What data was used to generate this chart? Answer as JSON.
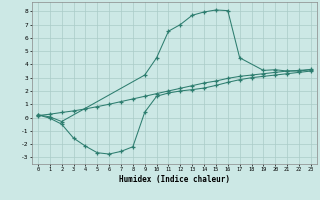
{
  "line1_x": [
    0,
    1,
    2,
    9,
    10,
    11,
    12,
    13,
    14,
    15,
    16,
    17,
    19,
    20,
    21,
    22,
    23
  ],
  "line1_y": [
    0.2,
    0.05,
    -0.3,
    3.2,
    4.5,
    6.5,
    7.0,
    7.7,
    7.95,
    8.1,
    8.05,
    4.5,
    3.55,
    3.6,
    3.5,
    3.5,
    3.6
  ],
  "line2_x": [
    0,
    1,
    2,
    3,
    4,
    5,
    6,
    7,
    8,
    9,
    10,
    11,
    12,
    13,
    14,
    15,
    16,
    17,
    18,
    19,
    20,
    21,
    22,
    23
  ],
  "line2_y": [
    0.15,
    0.25,
    0.38,
    0.5,
    0.65,
    0.82,
    1.0,
    1.2,
    1.4,
    1.6,
    1.8,
    2.0,
    2.2,
    2.4,
    2.6,
    2.75,
    2.95,
    3.1,
    3.2,
    3.3,
    3.4,
    3.5,
    3.55,
    3.62
  ],
  "line3_x": [
    0,
    1,
    2,
    3,
    4,
    5,
    6,
    7,
    8,
    9,
    10,
    11,
    12,
    13,
    14,
    15,
    16,
    17,
    18,
    19,
    20,
    21,
    22,
    23
  ],
  "line3_y": [
    0.2,
    -0.05,
    -0.5,
    -1.55,
    -2.15,
    -2.65,
    -2.75,
    -2.55,
    -2.2,
    0.4,
    1.6,
    1.85,
    2.0,
    2.1,
    2.22,
    2.42,
    2.65,
    2.85,
    3.0,
    3.1,
    3.2,
    3.3,
    3.4,
    3.5
  ],
  "color": "#2d7d6f",
  "bg_color": "#cce8e5",
  "grid_color": "#aaccc8",
  "xlabel": "Humidex (Indice chaleur)",
  "ylim": [
    -3.5,
    8.7
  ],
  "xlim": [
    -0.5,
    23.5
  ],
  "xticks": [
    0,
    1,
    2,
    3,
    4,
    5,
    6,
    7,
    8,
    9,
    10,
    11,
    12,
    13,
    14,
    15,
    16,
    17,
    18,
    19,
    20,
    21,
    22,
    23
  ],
  "yticks": [
    -3,
    -2,
    -1,
    0,
    1,
    2,
    3,
    4,
    5,
    6,
    7,
    8
  ]
}
